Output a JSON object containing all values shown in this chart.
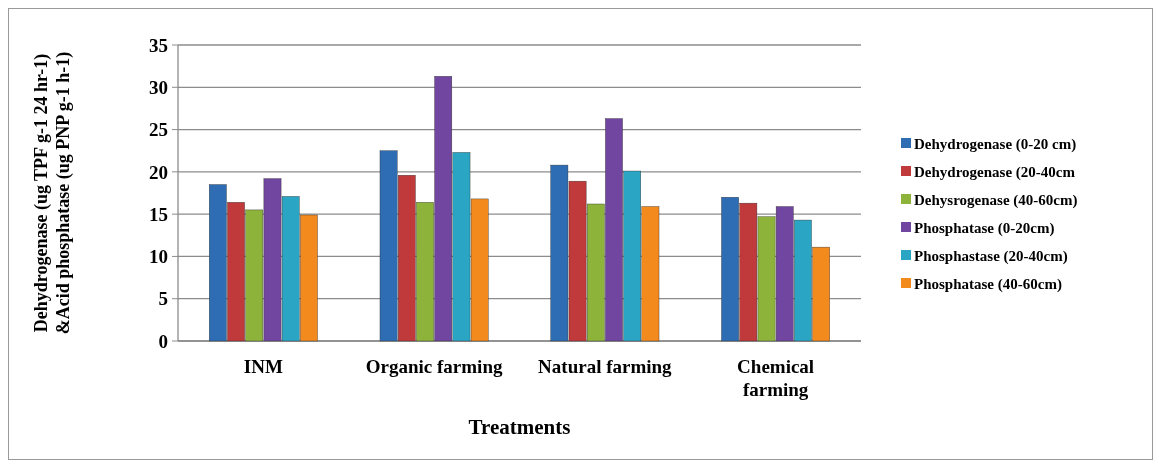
{
  "chart_data": {
    "type": "bar",
    "xlabel": "Treatments",
    "ylabel": "Dehydrogenase (ug TPF g-1 24 hr-1) &Acid phosphatase (ug PNP g-1 h-1)",
    "categories": [
      "INM",
      "Organic farming",
      "Natural farming",
      "Chemical farming"
    ],
    "series": [
      {
        "name": "Dehydrogenase (0-20 cm)",
        "color": "#2e6db4",
        "values": [
          18.5,
          22.5,
          20.8,
          17.0
        ]
      },
      {
        "name": "Dehydrogenase (20-40cm",
        "color": "#c0393b",
        "values": [
          16.4,
          19.6,
          18.9,
          16.3
        ]
      },
      {
        "name": "Dehysrogenase (40-60cm)",
        "color": "#8db33a",
        "values": [
          15.5,
          16.4,
          16.2,
          14.7
        ]
      },
      {
        "name": "Phosphatase (0-20cm)",
        "color": "#7046a0",
        "values": [
          19.2,
          31.3,
          26.3,
          15.9
        ]
      },
      {
        "name": "Phosphastase (20-40cm)",
        "color": "#2aa6c4",
        "values": [
          17.1,
          22.3,
          20.1,
          14.3
        ]
      },
      {
        "name": "Phosphatase (40-60cm)",
        "color": "#f28a1e",
        "values": [
          14.9,
          16.8,
          15.9,
          11.1
        ]
      }
    ],
    "ylim": [
      0,
      35
    ],
    "yticks": [
      0,
      5,
      10,
      15,
      20,
      25,
      30,
      35
    ],
    "grid": "y",
    "legend": "right"
  }
}
